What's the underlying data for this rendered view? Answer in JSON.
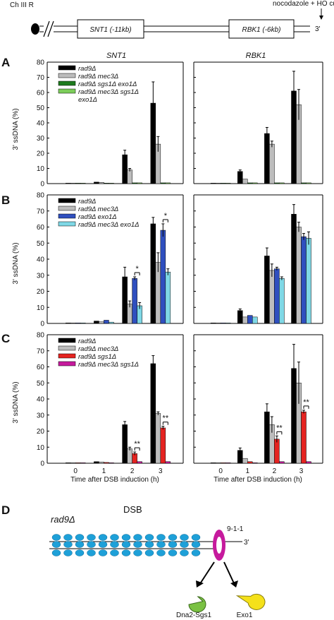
{
  "header": {
    "chromosome_label": "Ch III R",
    "gene1_label": "SNT1 (-11kb)",
    "gene2_label": "RBK1 (-6kb)",
    "end_label": "3'",
    "treatment_label": "nocodazole + HO cut"
  },
  "panels": {
    "A": {
      "letter": "A",
      "ylabel": "3' ssDNA (%)"
    },
    "B": {
      "letter": "B",
      "ylabel": "3' ssDNA (%)"
    },
    "C": {
      "letter": "C",
      "ylabel": "3' ssDNA (%)",
      "xlabel": "Time after DSB induction (h)"
    },
    "D": {
      "letter": "D",
      "strain_label": "rad9Δ",
      "dsb_label": "DSB",
      "clamp_label": "9-1-1",
      "end_label": "3'",
      "nuclease1_label": "Dna2-Sgs1",
      "nuclease2_label": "Exo1"
    }
  },
  "colors": {
    "black": "#000000",
    "grey": "#bdbdbd",
    "dark_green": "#1e7a1e",
    "light_green": "#7ccd5a",
    "blue": "#2f4fbf",
    "cyan": "#7fd8e6",
    "red": "#e52320",
    "magenta": "#c61a9d",
    "nucleosome": "#1ea0d8",
    "pacman_green": "#7ac143",
    "pacman_yellow": "#f5e11a"
  },
  "chart_data": [
    {
      "type": "bar",
      "panel": "A",
      "locus": "SNT1",
      "categories": [
        "0",
        "1",
        "2",
        "3"
      ],
      "ylim": [
        0,
        80
      ],
      "yticks": [
        0,
        10,
        20,
        30,
        40,
        50,
        60,
        70,
        80
      ],
      "series": [
        {
          "name": "rad9Δ",
          "color": "black",
          "values": [
            0.3,
            1,
            19,
            53
          ],
          "errors": [
            0.2,
            0.3,
            3,
            14
          ]
        },
        {
          "name": "rad9Δ mec3Δ",
          "color": "grey",
          "values": [
            0.3,
            0.8,
            9,
            26
          ],
          "errors": [
            0.2,
            0.3,
            1,
            5
          ]
        },
        {
          "name": "rad9Δ sgs1Δ exo1Δ",
          "color": "dark_green",
          "values": [
            0.3,
            0.3,
            0.5,
            0.5
          ],
          "errors": [
            0,
            0,
            0,
            0
          ]
        },
        {
          "name": "rad9Δ mec3Δ sgs1Δ exo1Δ",
          "color": "light_green",
          "values": [
            0.3,
            0.3,
            0.5,
            0.5
          ],
          "errors": [
            0,
            0,
            0,
            0
          ]
        }
      ],
      "significance": []
    },
    {
      "type": "bar",
      "panel": "A",
      "locus": "RBK1",
      "categories": [
        "0",
        "1",
        "2",
        "3"
      ],
      "ylim": [
        0,
        80
      ],
      "yticks": [
        0,
        10,
        20,
        30,
        40,
        50,
        60,
        70,
        80
      ],
      "series": [
        {
          "name": "rad9Δ",
          "color": "black",
          "values": [
            0.3,
            8,
            33,
            61
          ],
          "errors": [
            0.2,
            1,
            4,
            13
          ]
        },
        {
          "name": "rad9Δ mec3Δ",
          "color": "grey",
          "values": [
            0.3,
            3,
            26,
            52
          ],
          "errors": [
            0.2,
            0.5,
            2,
            10
          ]
        },
        {
          "name": "rad9Δ sgs1Δ exo1Δ",
          "color": "dark_green",
          "values": [
            0.3,
            0.5,
            0.5,
            0.5
          ],
          "errors": [
            0,
            0,
            0,
            0
          ]
        },
        {
          "name": "rad9Δ mec3Δ sgs1Δ exo1Δ",
          "color": "light_green",
          "values": [
            0.3,
            0.5,
            0.5,
            0.5
          ],
          "errors": [
            0,
            0,
            0,
            0
          ]
        }
      ],
      "significance": []
    },
    {
      "type": "bar",
      "panel": "B",
      "locus": "SNT1",
      "categories": [
        "0",
        "1",
        "2",
        "3"
      ],
      "ylim": [
        0,
        80
      ],
      "yticks": [
        0,
        10,
        20,
        30,
        40,
        50,
        60,
        70,
        80
      ],
      "series": [
        {
          "name": "rad9Δ",
          "color": "black",
          "values": [
            0.3,
            1.5,
            29,
            62
          ],
          "errors": [
            0.2,
            0.4,
            6,
            4
          ]
        },
        {
          "name": "rad9Δ mec3Δ",
          "color": "grey",
          "values": [
            0.3,
            1,
            12,
            38
          ],
          "errors": [
            0.2,
            0.3,
            2,
            6
          ]
        },
        {
          "name": "rad9Δ exo1Δ",
          "color": "blue",
          "values": [
            0.3,
            2,
            28,
            58
          ],
          "errors": [
            0.2,
            0.5,
            1,
            4
          ]
        },
        {
          "name": "rad9Δ mec3Δ exo1Δ",
          "color": "cyan",
          "values": [
            0.3,
            0.8,
            11,
            32
          ],
          "errors": [
            0.2,
            0.3,
            2,
            2
          ]
        }
      ],
      "significance": [
        {
          "category": "2",
          "from_series": 2,
          "to_series": 3,
          "label": "*"
        },
        {
          "category": "3",
          "from_series": 2,
          "to_series": 3,
          "label": "*"
        }
      ]
    },
    {
      "type": "bar",
      "panel": "B",
      "locus": "RBK1",
      "categories": [
        "0",
        "1",
        "2",
        "3"
      ],
      "ylim": [
        0,
        80
      ],
      "yticks": [
        0,
        10,
        20,
        30,
        40,
        50,
        60,
        70,
        80
      ],
      "series": [
        {
          "name": "rad9Δ",
          "color": "black",
          "values": [
            0.3,
            8,
            42,
            68
          ],
          "errors": [
            0.2,
            1,
            5,
            6
          ]
        },
        {
          "name": "rad9Δ mec3Δ",
          "color": "grey",
          "values": [
            0.3,
            4,
            33,
            60
          ],
          "errors": [
            0.2,
            0.5,
            4,
            3
          ]
        },
        {
          "name": "rad9Δ exo1Δ",
          "color": "blue",
          "values": [
            0.3,
            5,
            34,
            54
          ],
          "errors": [
            0.2,
            0.5,
            1,
            2
          ]
        },
        {
          "name": "rad9Δ mec3Δ exo1Δ",
          "color": "cyan",
          "values": [
            0.3,
            4,
            28,
            53
          ],
          "errors": [
            0.2,
            0.5,
            1,
            4
          ]
        }
      ],
      "significance": []
    },
    {
      "type": "bar",
      "panel": "C",
      "locus": "SNT1",
      "categories": [
        "0",
        "1",
        "2",
        "3"
      ],
      "ylim": [
        0,
        80
      ],
      "yticks": [
        0,
        10,
        20,
        30,
        40,
        50,
        60,
        70,
        80
      ],
      "series": [
        {
          "name": "rad9Δ",
          "color": "black",
          "values": [
            0.3,
            1,
            24,
            62
          ],
          "errors": [
            0.2,
            0.3,
            2,
            5
          ]
        },
        {
          "name": "rad9Δ mec3Δ",
          "color": "grey",
          "values": [
            0.3,
            0.8,
            9,
            31
          ],
          "errors": [
            0.2,
            0.3,
            1,
            1
          ]
        },
        {
          "name": "rad9Δ sgs1Δ",
          "color": "red",
          "values": [
            0.3,
            0.5,
            6,
            22
          ],
          "errors": [
            0.2,
            0.2,
            1,
            1
          ]
        },
        {
          "name": "rad9Δ mec3Δ sgs1Δ",
          "color": "magenta",
          "values": [
            0.3,
            0.3,
            1,
            1
          ],
          "errors": [
            0,
            0,
            0,
            0
          ]
        }
      ],
      "significance": [
        {
          "category": "2",
          "from_series": 2,
          "to_series": 3,
          "label": "**"
        },
        {
          "category": "3",
          "from_series": 2,
          "to_series": 3,
          "label": "**"
        }
      ]
    },
    {
      "type": "bar",
      "panel": "C",
      "locus": "RBK1",
      "categories": [
        "0",
        "1",
        "2",
        "3"
      ],
      "ylim": [
        0,
        80
      ],
      "yticks": [
        0,
        10,
        20,
        30,
        40,
        50,
        60,
        70,
        80
      ],
      "series": [
        {
          "name": "rad9Δ",
          "color": "black",
          "values": [
            0.3,
            8,
            32,
            59
          ],
          "errors": [
            0.2,
            1.5,
            5,
            15
          ]
        },
        {
          "name": "rad9Δ mec3Δ",
          "color": "grey",
          "values": [
            0.3,
            3,
            24,
            50
          ],
          "errors": [
            0.2,
            0.5,
            5,
            13
          ]
        },
        {
          "name": "rad9Δ sgs1Δ",
          "color": "red",
          "values": [
            0.3,
            1,
            15,
            32
          ],
          "errors": [
            0.2,
            0.3,
            2,
            1
          ]
        },
        {
          "name": "rad9Δ mec3Δ sgs1Δ",
          "color": "magenta",
          "values": [
            0.3,
            0.3,
            1,
            1
          ],
          "errors": [
            0,
            0,
            0,
            0
          ]
        }
      ],
      "significance": [
        {
          "category": "2",
          "from_series": 2,
          "to_series": 3,
          "label": "**"
        },
        {
          "category": "3",
          "from_series": 2,
          "to_series": 3,
          "label": "**"
        }
      ]
    }
  ]
}
